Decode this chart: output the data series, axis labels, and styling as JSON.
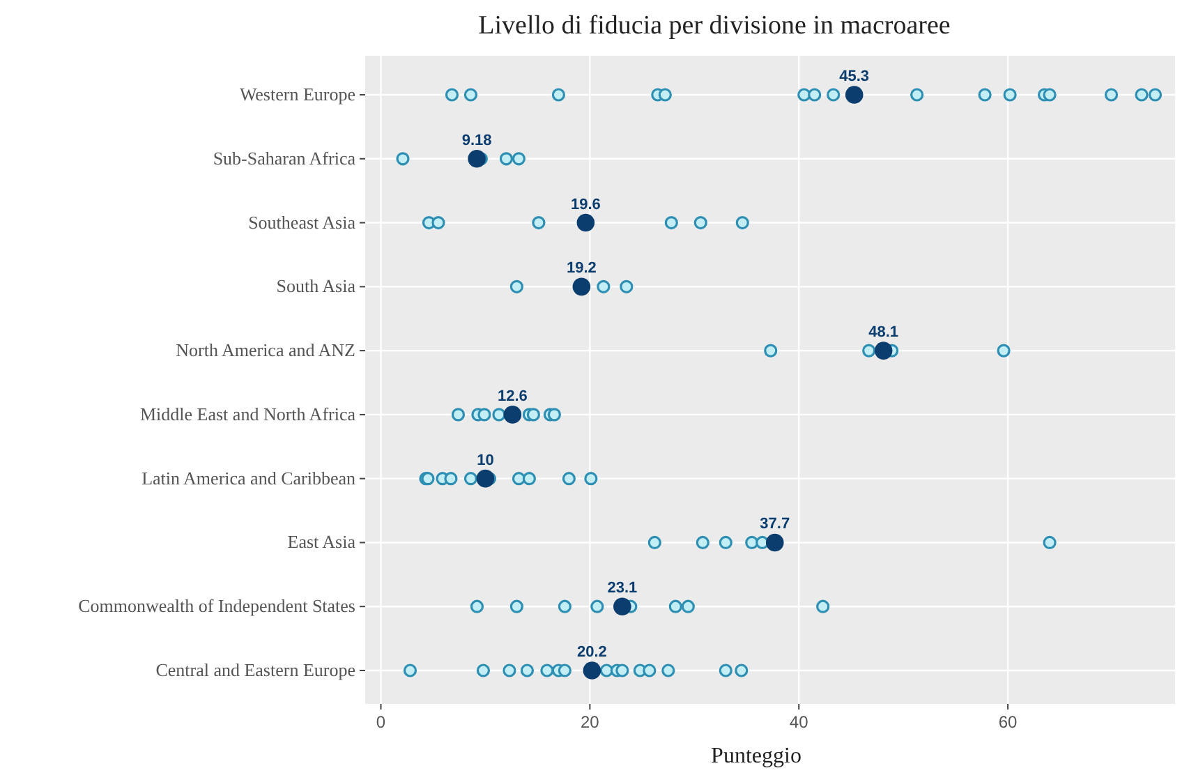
{
  "chart_data": {
    "type": "scatter",
    "orientation": "horizontal",
    "title": "Livello di fiducia per divisione in macroaree",
    "xlabel": "Punteggio",
    "categories": [
      "Western Europe",
      "Sub-Saharan Africa",
      "Southeast Asia",
      "South Asia",
      "North America and ANZ",
      "Middle East and North Africa",
      "Latin America and Caribbean",
      "East Asia",
      "Commonwealth of Independent States",
      "Central and Eastern Europe"
    ],
    "xlim": [
      -1.5,
      76
    ],
    "xticks": [
      0,
      20,
      40,
      60
    ],
    "grid": true,
    "marker": "circle",
    "series": [
      {
        "color": "#2e8fb3",
        "x": [
          "Western Europe",
          "Western Europe",
          "Western Europe",
          "Western Europe",
          "Western Europe",
          "Western Europe",
          "Western Europe",
          "Western Europe",
          "Western Europe",
          "Western Europe",
          "Western Europe",
          "Western Europe",
          "Western Europe",
          "Western Europe",
          "Western Europe",
          "Western Europe",
          "Sub-Saharan Africa",
          "Sub-Saharan Africa",
          "Sub-Saharan Africa",
          "Sub-Saharan Africa",
          "Southeast Asia",
          "Southeast Asia",
          "Southeast Asia",
          "Southeast Asia",
          "Southeast Asia",
          "Southeast Asia",
          "South Asia",
          "South Asia",
          "South Asia",
          "North America and ANZ",
          "North America and ANZ",
          "North America and ANZ",
          "North America and ANZ",
          "Middle East and North Africa",
          "Middle East and North Africa",
          "Middle East and North Africa",
          "Middle East and North Africa",
          "Middle East and North Africa",
          "Middle East and North Africa",
          "Middle East and North Africa",
          "Middle East and North Africa",
          "Latin America and Caribbean",
          "Latin America and Caribbean",
          "Latin America and Caribbean",
          "Latin America and Caribbean",
          "Latin America and Caribbean",
          "Latin America and Caribbean",
          "Latin America and Caribbean",
          "Latin America and Caribbean",
          "Latin America and Caribbean",
          "Latin America and Caribbean",
          "East Asia",
          "East Asia",
          "East Asia",
          "East Asia",
          "East Asia",
          "East Asia",
          "Commonwealth of Independent States",
          "Commonwealth of Independent States",
          "Commonwealth of Independent States",
          "Commonwealth of Independent States",
          "Commonwealth of Independent States",
          "Commonwealth of Independent States",
          "Commonwealth of Independent States",
          "Commonwealth of Independent States",
          "Central and Eastern Europe",
          "Central and Eastern Europe",
          "Central and Eastern Europe",
          "Central and Eastern Europe",
          "Central and Eastern Europe",
          "Central and Eastern Europe",
          "Central and Eastern Europe",
          "Central and Eastern Europe",
          "Central and Eastern Europe",
          "Central and Eastern Europe",
          "Central and Eastern Europe",
          "Central and Eastern Europe",
          "Central and Eastern Europe",
          "Central and Eastern Europe",
          "Central and Eastern Europe"
        ],
        "values": [
          6.8,
          8.6,
          17.0,
          26.5,
          27.2,
          40.5,
          41.5,
          43.3,
          51.3,
          57.8,
          60.2,
          63.5,
          64.0,
          69.9,
          72.8,
          74.1,
          2.1,
          9.6,
          12.0,
          13.2,
          4.6,
          5.5,
          15.1,
          27.8,
          30.6,
          34.6,
          13.0,
          21.3,
          23.5,
          37.3,
          46.7,
          48.9,
          59.6,
          7.4,
          9.3,
          9.9,
          11.3,
          14.2,
          14.6,
          16.2,
          16.6,
          4.3,
          4.5,
          5.9,
          6.7,
          8.6,
          10.4,
          13.2,
          14.2,
          18.0,
          20.1,
          26.2,
          30.8,
          33.0,
          35.5,
          36.5,
          64.0,
          9.2,
          13.0,
          17.6,
          20.7,
          23.9,
          28.2,
          29.4,
          42.3,
          2.8,
          9.8,
          12.3,
          14.0,
          15.9,
          17.0,
          17.6,
          21.6,
          22.6,
          23.1,
          24.8,
          25.7,
          27.5,
          33.0,
          34.5
        ]
      },
      {
        "color": "#0b3d6e",
        "values": [
          45.3,
          9.18,
          19.6,
          19.2,
          48.1,
          12.6,
          10,
          37.7,
          23.1,
          20.2
        ],
        "value_labels": [
          "45.3",
          "9.18",
          "19.6",
          "19.2",
          "48.1",
          "12.6",
          "10",
          "37.7",
          "23.1",
          "20.2"
        ]
      }
    ]
  }
}
